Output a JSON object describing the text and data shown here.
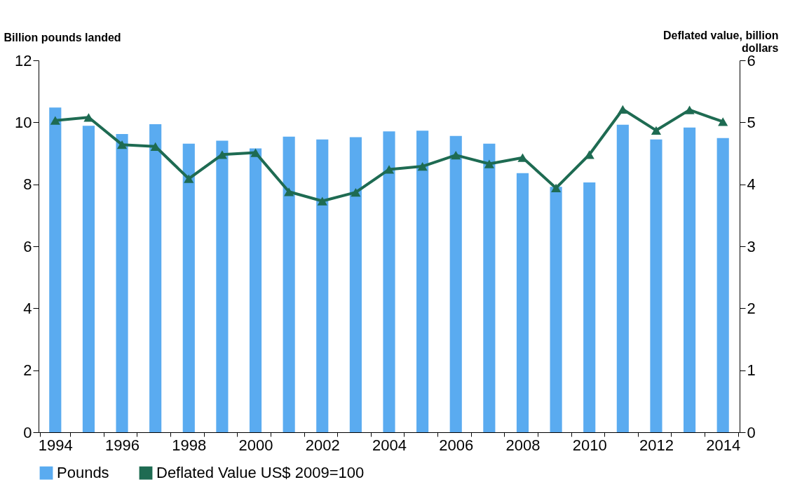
{
  "chart_data": {
    "type": "bar",
    "xlabel": null,
    "ylabel": "Billion pounds landed",
    "y2label": "Deflated value, billion dollars",
    "categories": [
      "1994",
      null,
      "1996",
      null,
      "1998",
      null,
      "2000",
      null,
      "2002",
      null,
      "2004",
      null,
      "2006",
      null,
      "2008",
      null,
      "2010",
      null,
      "2012",
      null,
      "2014"
    ],
    "series": [
      {
        "name": "Pounds",
        "color": "#5aabf0",
        "values": [
          10.48,
          9.89,
          9.62,
          9.94,
          9.31,
          9.41,
          9.16,
          9.54,
          9.45,
          9.52,
          9.71,
          9.73,
          9.56,
          9.31,
          8.36,
          7.92,
          8.06,
          9.92,
          9.45,
          9.83,
          9.49
        ]
      },
      {
        "name": "Deflated Value US$ 2009=100",
        "type": "line",
        "axis": "y2",
        "color": "#1e6b52",
        "marker": "triangle",
        "values": [
          5.03,
          5.08,
          4.64,
          4.61,
          4.09,
          4.48,
          4.51,
          3.88,
          3.73,
          3.87,
          4.24,
          4.29,
          4.47,
          4.33,
          4.43,
          3.94,
          4.48,
          5.21,
          4.87,
          5.2,
          5.01
        ]
      }
    ],
    "ylim": [
      0,
      12
    ],
    "yticks": [
      0,
      2,
      4,
      6,
      8,
      10,
      12
    ],
    "y2lim": [
      0,
      6
    ],
    "y2ticks": [
      0,
      1,
      2,
      3,
      4,
      5,
      6
    ],
    "grid": false,
    "legend": "bottom"
  }
}
